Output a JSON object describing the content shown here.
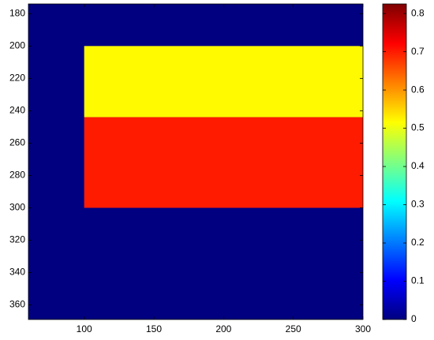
{
  "chart_data": {
    "type": "heatmap",
    "xlim": [
      60,
      300
    ],
    "ylim": [
      174,
      369
    ],
    "xticks": [
      100,
      150,
      200,
      250,
      300
    ],
    "yticks": [
      180,
      200,
      220,
      240,
      260,
      280,
      300,
      320,
      340,
      360
    ],
    "colormap": "jet",
    "clim": [
      0,
      0.825
    ],
    "background_value": 0,
    "regions": [
      {
        "x": [
          100,
          300
        ],
        "y": [
          200,
          244
        ],
        "value": 0.52
      },
      {
        "x": [
          100,
          300
        ],
        "y": [
          244,
          300
        ],
        "value": 0.7
      }
    ],
    "colorbar_ticks": [
      0,
      0.1,
      0.2,
      0.3,
      0.4,
      0.5,
      0.6,
      0.7,
      0.8
    ]
  }
}
